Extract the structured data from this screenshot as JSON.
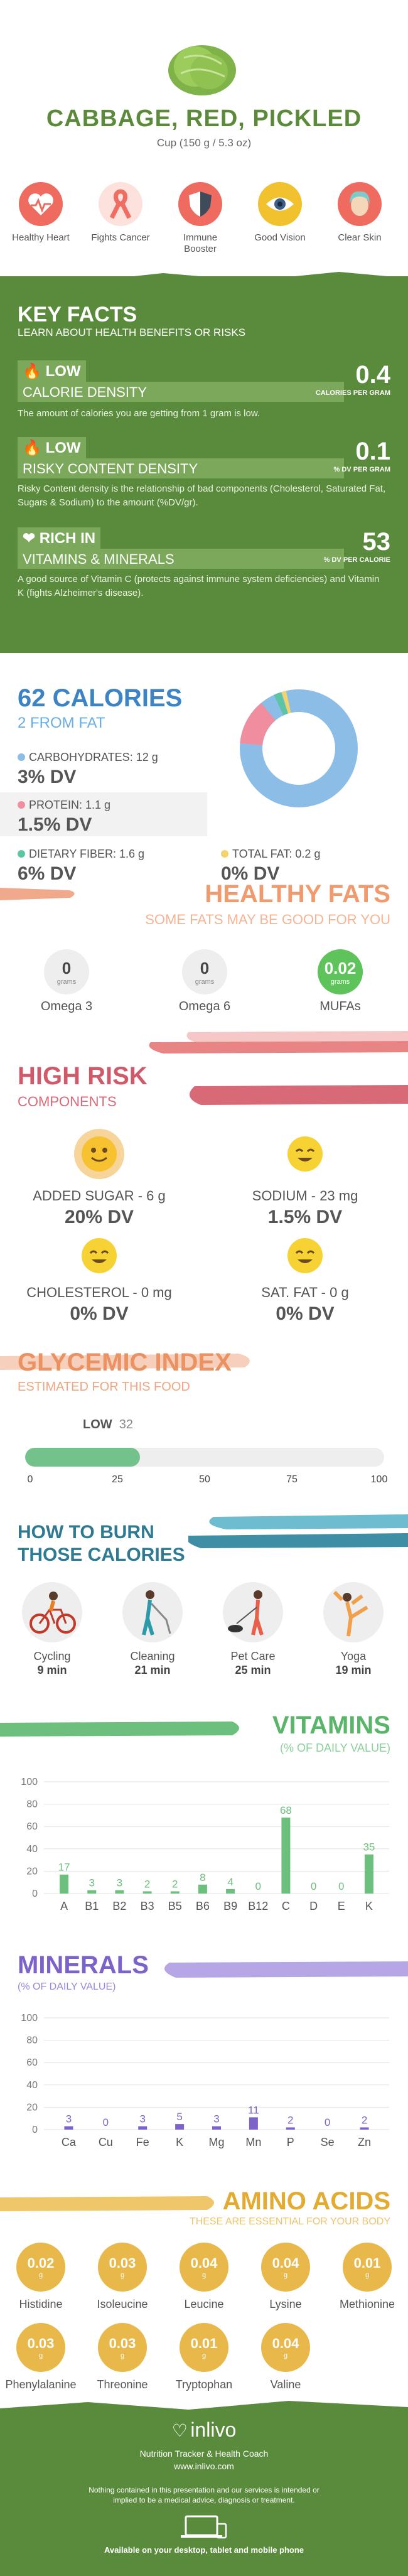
{
  "header": {
    "title": "CABBAGE, RED, PICKLED",
    "serving": "Cup (150 g / 5.3 oz)",
    "benefits": [
      {
        "label": "Healthy Heart",
        "color": "#ef6b5f",
        "icon": "heart-icon"
      },
      {
        "label": "Fights Cancer",
        "color": "#f26d61",
        "icon": "ribbon-icon"
      },
      {
        "label": "Immune Booster",
        "color": "#ef6b5f",
        "icon": "shield-icon"
      },
      {
        "label": "Good Vision",
        "color": "#f2c12e",
        "icon": "eye-icon"
      },
      {
        "label": "Clear Skin",
        "color": "#ef6b5f",
        "icon": "face-icon"
      }
    ]
  },
  "key_facts": {
    "title": "KEY FACTS",
    "subtitle": "LEARN ABOUT HEALTH BENEFITS OR RISKS",
    "items": [
      {
        "level": "LOW",
        "name": "CALORIE DENSITY",
        "desc": "The amount of calories you are getting from 1 gram is low.",
        "value": "0.4",
        "unit": "CALORIES PER GRAM"
      },
      {
        "level": "LOW",
        "name": "RISKY CONTENT DENSITY",
        "desc": "Risky Content density is the relationship of bad components (Cholesterol, Saturated Fat, Sugars & Sodium) to the amount (%DV/gr).",
        "value": "0.1",
        "unit": "% DV PER GRAM"
      },
      {
        "level": "RICH IN",
        "name": "VITAMINS & MINERALS",
        "desc": "A good source of Vitamin C (protects against immune system deficiencies) and Vitamin K (fights Alzheimer's disease).",
        "value": "53",
        "unit": "% DV PER CALORIE"
      }
    ]
  },
  "calories": {
    "title": "62 CALORIES",
    "subtitle": "2 FROM FAT",
    "carbs": {
      "label": "CARBOHYDRATES: 12 g",
      "dv": "3% DV"
    },
    "protein": {
      "label": "PROTEIN: 1.1 g",
      "dv": "1.5% DV"
    },
    "fiber": {
      "label": "DIETARY FIBER: 1.6 g",
      "dv": "6% DV"
    },
    "fat": {
      "label": "TOTAL FAT: 0.2 g",
      "dv": "0% DV"
    },
    "colors": {
      "carbs": "#8cbde7",
      "protein": "#f08ea0",
      "fiber": "#5ec4a6",
      "fat": "#f3d36b"
    }
  },
  "healthy_fats": {
    "title": "HEALTHY FATS",
    "subtitle": "SOME FATS MAY BE GOOD FOR YOU",
    "items": [
      {
        "value": "0",
        "unit": "grams",
        "label": "Omega 3"
      },
      {
        "value": "0",
        "unit": "grams",
        "label": "Omega 6"
      },
      {
        "value": "0.02",
        "unit": "grams",
        "label": "MUFAs"
      }
    ]
  },
  "high_risk": {
    "title": "HIGH RISK",
    "subtitle": "COMPONENTS",
    "items": [
      {
        "label": "ADDED SUGAR - 6 g",
        "dv": "20% DV"
      },
      {
        "label": "SODIUM - 23 mg",
        "dv": "1.5% DV"
      },
      {
        "label": "CHOLESTEROL - 0 mg",
        "dv": "0% DV"
      },
      {
        "label": "SAT. FAT - 0 g",
        "dv": "0% DV"
      }
    ]
  },
  "glycemic": {
    "title": "GLYCEMIC INDEX",
    "subtitle": "ESTIMATED FOR THIS FOOD",
    "level": "LOW",
    "value": "32",
    "value_num": 32,
    "ticks": [
      "0",
      "25",
      "50",
      "75",
      "100"
    ]
  },
  "burn": {
    "title_1": "HOW TO BURN",
    "title_2": "THOSE CALORIES",
    "items": [
      {
        "label": "Cycling",
        "minutes": "9 min"
      },
      {
        "label": "Cleaning",
        "minutes": "21 min"
      },
      {
        "label": "Pet Care",
        "minutes": "25 min"
      },
      {
        "label": "Yoga",
        "minutes": "19 min"
      }
    ]
  },
  "vitamins": {
    "title": "VITAMINS",
    "subtitle": "(% OF DAILY VALUE)",
    "yticks": [
      "100",
      "80",
      "60",
      "40",
      "20",
      "0"
    ]
  },
  "minerals": {
    "title": "MINERALS",
    "subtitle": "(% OF DAILY VALUE)",
    "yticks": [
      "100",
      "80",
      "60",
      "40",
      "20",
      "0"
    ]
  },
  "amino_acids": {
    "title": "AMINO ACIDS",
    "subtitle": "THESE ARE ESSENTIAL FOR YOUR BODY",
    "unit": "g",
    "items": [
      {
        "value": "0.02",
        "label": "Histidine"
      },
      {
        "value": "0.03",
        "label": "Isoleucine"
      },
      {
        "value": "0.04",
        "label": "Leucine"
      },
      {
        "value": "0.04",
        "label": "Lysine"
      },
      {
        "value": "0.01",
        "label": "Methionine"
      },
      {
        "value": "0.03",
        "label": "Phenylalanine"
      },
      {
        "value": "0.03",
        "label": "Threonine"
      },
      {
        "value": "0.01",
        "label": "Tryptophan"
      },
      {
        "value": "0.04",
        "label": "Valine"
      }
    ]
  },
  "footer": {
    "brand": "inlivo",
    "tagline": "Nutrition Tracker & Health Coach",
    "url": "www.inlivo.com",
    "disclaimer": "Nothing contained in this presentation and our services is intended or implied to be a medical advice, diagnosis or treatment.",
    "available": "Available on your desktop, tablet and mobile phone"
  },
  "chart_data": [
    {
      "type": "bar",
      "categories": [
        "A",
        "B1",
        "B2",
        "B3",
        "B5",
        "B6",
        "B9",
        "B12",
        "C",
        "D",
        "E",
        "K"
      ],
      "values": [
        17,
        3,
        3,
        2,
        2,
        8,
        4,
        0,
        68,
        0,
        0,
        35
      ],
      "title": "VITAMINS",
      "ylabel": "(% OF DAILY VALUE)",
      "ylim": [
        0,
        100
      ],
      "color": "#6dbf7d"
    },
    {
      "type": "bar",
      "categories": [
        "Ca",
        "Cu",
        "Fe",
        "K",
        "Mg",
        "Mn",
        "P",
        "Se",
        "Zn"
      ],
      "values": [
        3,
        0,
        3,
        5,
        3,
        11,
        2,
        0,
        2
      ],
      "title": "MINERALS",
      "ylabel": "(% OF DAILY VALUE)",
      "ylim": [
        0,
        100
      ],
      "color": "#7b63c9"
    }
  ]
}
